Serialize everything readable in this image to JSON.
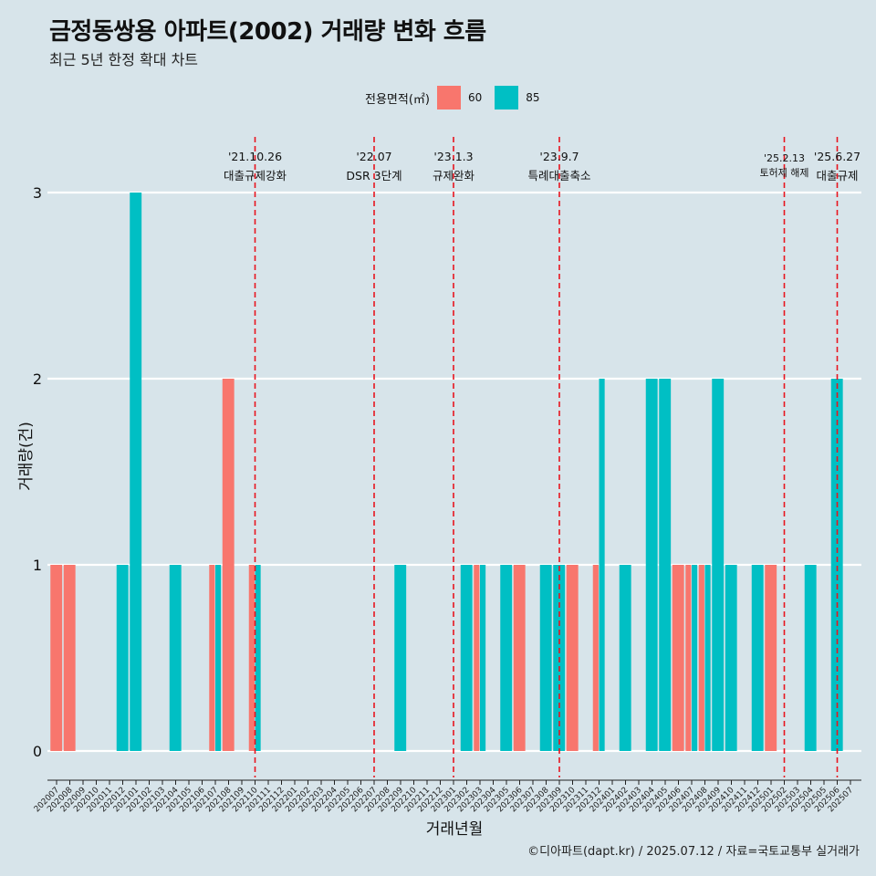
{
  "title": "금정동쌍용 아파트(2002) 거래량 변화 흐름",
  "subtitle": "최근 5년 한정 확대 차트",
  "footer": "©디아파트(dapt.kr) / 2025.07.12 / 자료=국토교통부 실거래가",
  "legend": {
    "title": "전용면적(㎡)",
    "items": [
      {
        "label": "60",
        "color": "#f8766d"
      },
      {
        "label": "85",
        "color": "#00bfc4"
      }
    ]
  },
  "chart_data": {
    "type": "bar",
    "xlabel": "거래년월",
    "ylabel": "거래량(건)",
    "ylim": [
      0,
      3
    ],
    "yticks": [
      0,
      1,
      2,
      3
    ],
    "categories": [
      "202007",
      "202008",
      "202009",
      "202010",
      "202011",
      "202012",
      "202101",
      "202102",
      "202103",
      "202104",
      "202105",
      "202106",
      "202107",
      "202108",
      "202109",
      "202110",
      "202111",
      "202112",
      "202201",
      "202202",
      "202203",
      "202204",
      "202205",
      "202206",
      "202207",
      "202208",
      "202209",
      "202210",
      "202211",
      "202212",
      "202301",
      "202302",
      "202303",
      "202304",
      "202305",
      "202306",
      "202307",
      "202308",
      "202309",
      "202310",
      "202311",
      "202312",
      "202401",
      "202402",
      "202403",
      "202404",
      "202405",
      "202406",
      "202407",
      "202408",
      "202409",
      "202410",
      "202411",
      "202412",
      "202501",
      "202502",
      "202503",
      "202504",
      "202505",
      "202506",
      "202507"
    ],
    "bars": [
      {
        "month": "202007",
        "series": "60",
        "value": 1
      },
      {
        "month": "202008",
        "series": "60",
        "value": 1
      },
      {
        "month": "202012",
        "series": "85",
        "value": 1
      },
      {
        "month": "202101",
        "series": "85",
        "value": 3
      },
      {
        "month": "202104",
        "series": "85",
        "value": 1
      },
      {
        "month": "202107",
        "series": "60",
        "value": 1
      },
      {
        "month": "202107",
        "series": "85",
        "value": 1
      },
      {
        "month": "202108",
        "series": "60",
        "value": 2
      },
      {
        "month": "202110",
        "series": "60",
        "value": 1
      },
      {
        "month": "202110",
        "series": "85",
        "value": 1
      },
      {
        "month": "202209",
        "series": "85",
        "value": 1
      },
      {
        "month": "202302",
        "series": "85",
        "value": 1
      },
      {
        "month": "202303",
        "series": "60",
        "value": 1
      },
      {
        "month": "202303",
        "series": "85",
        "value": 1
      },
      {
        "month": "202305",
        "series": "85",
        "value": 1
      },
      {
        "month": "202306",
        "series": "60",
        "value": 1
      },
      {
        "month": "202308",
        "series": "85",
        "value": 1
      },
      {
        "month": "202309",
        "series": "85",
        "value": 1
      },
      {
        "month": "202310",
        "series": "60",
        "value": 1
      },
      {
        "month": "202312",
        "series": "60",
        "value": 1
      },
      {
        "month": "202312",
        "series": "85",
        "value": 2
      },
      {
        "month": "202402",
        "series": "85",
        "value": 1
      },
      {
        "month": "202404",
        "series": "85",
        "value": 2
      },
      {
        "month": "202405",
        "series": "85",
        "value": 2
      },
      {
        "month": "202406",
        "series": "60",
        "value": 1
      },
      {
        "month": "202407",
        "series": "60",
        "value": 1
      },
      {
        "month": "202407",
        "series": "85",
        "value": 1
      },
      {
        "month": "202408",
        "series": "60",
        "value": 1
      },
      {
        "month": "202408",
        "series": "85",
        "value": 1
      },
      {
        "month": "202409",
        "series": "85",
        "value": 2
      },
      {
        "month": "202410",
        "series": "85",
        "value": 1
      },
      {
        "month": "202412",
        "series": "85",
        "value": 1
      },
      {
        "month": "202501",
        "series": "60",
        "value": 1
      },
      {
        "month": "202504",
        "series": "85",
        "value": 1
      },
      {
        "month": "202506",
        "series": "85",
        "value": 2
      }
    ],
    "annotations": [
      {
        "month": "202110",
        "date": "'21.10.26",
        "text": "대출규제강화"
      },
      {
        "month": "202207",
        "date": "'22.07",
        "text": "DSR 3단계"
      },
      {
        "month": "202301",
        "date": "'23.1.3",
        "text": "규제완화"
      },
      {
        "month": "202309",
        "date": "'23.9.7",
        "text": "특례대출축소"
      },
      {
        "month": "202502",
        "date": "'25.2.13",
        "text": "토허제 해제"
      },
      {
        "month": "202506",
        "date": "'25.6.27",
        "text": "대출규제"
      }
    ],
    "grid": true
  }
}
